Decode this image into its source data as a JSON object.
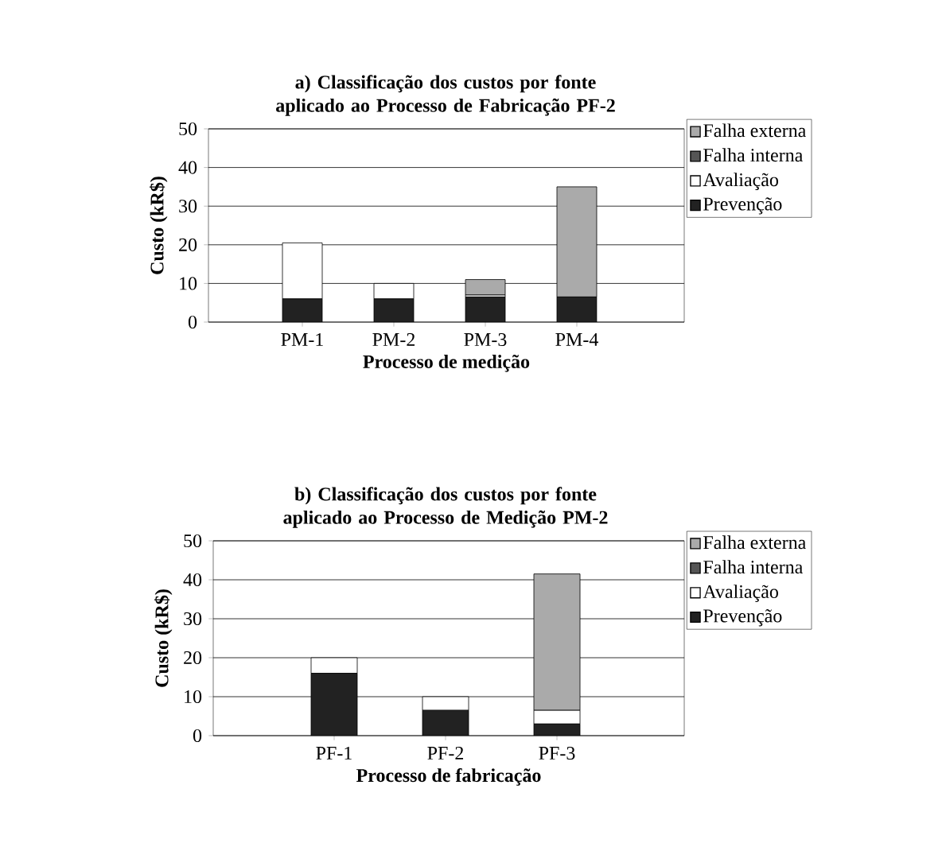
{
  "chart_data": [
    {
      "type": "bar",
      "stacked": true,
      "title": "a) Classificação dos custos por fonte aplicado ao Processo de Fabricação PF-2",
      "xlabel": "Processo de medição",
      "ylabel": "Custo (kR$)",
      "categories": [
        "PM-1",
        "PM-2",
        "PM-3",
        "PM-4"
      ],
      "ylim": [
        0,
        50
      ],
      "yticks": [
        0,
        10,
        20,
        30,
        40,
        50
      ],
      "grid": "y",
      "legend": "right",
      "series": [
        {
          "name": "Prevenção",
          "color": "#222222",
          "values": [
            6,
            6,
            6.5,
            6.5
          ]
        },
        {
          "name": "Avaliação",
          "color": "#ffffff",
          "values": [
            14.5,
            4,
            0.5,
            0
          ]
        },
        {
          "name": "Falha interna",
          "color": "#555555",
          "values": [
            0,
            0,
            0,
            0
          ]
        },
        {
          "name": "Falha externa",
          "color": "#aaaaaa",
          "values": [
            0,
            0,
            4,
            28.5
          ]
        }
      ]
    },
    {
      "type": "bar",
      "stacked": true,
      "title": "b) Classificação dos custos por fonte aplicado ao Processo de Medição PM-2",
      "xlabel": "Processo de fabricação",
      "ylabel": "Custo (kR$)",
      "categories": [
        "PF-1",
        "PF-2",
        "PF-3"
      ],
      "ylim": [
        0,
        50
      ],
      "yticks": [
        0,
        10,
        20,
        30,
        40,
        50
      ],
      "grid": "y",
      "legend": "right",
      "series": [
        {
          "name": "Prevenção",
          "color": "#222222",
          "values": [
            16,
            6.5,
            3
          ]
        },
        {
          "name": "Avaliação",
          "color": "#ffffff",
          "values": [
            4,
            3.5,
            3.5
          ]
        },
        {
          "name": "Falha interna",
          "color": "#555555",
          "values": [
            0,
            0,
            0
          ]
        },
        {
          "name": "Falha externa",
          "color": "#aaaaaa",
          "values": [
            0,
            0,
            35
          ]
        }
      ]
    }
  ]
}
